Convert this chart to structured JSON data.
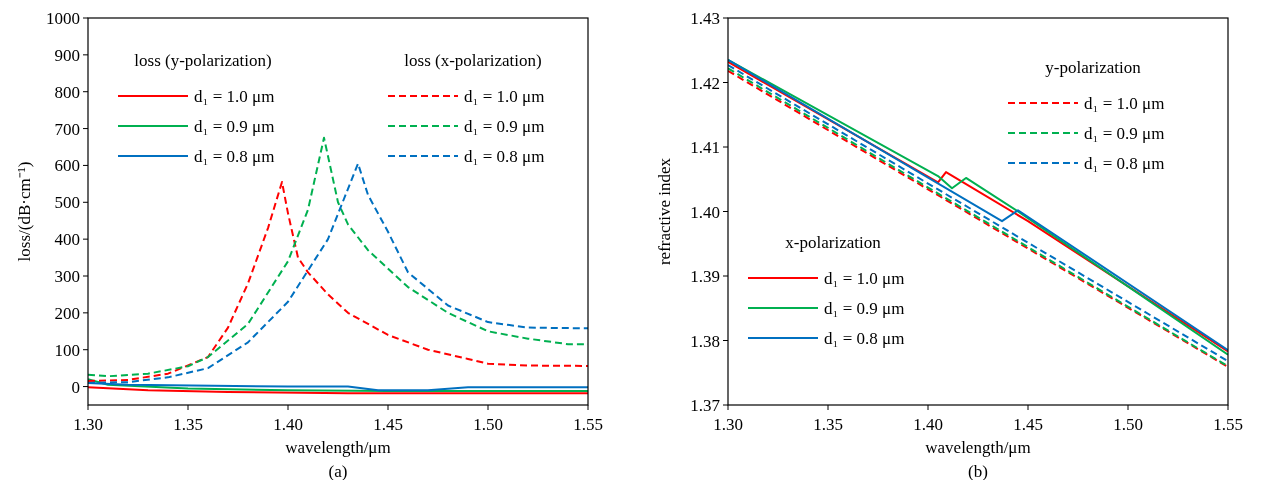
{
  "chart_data": [
    {
      "type": "line",
      "xlabel": "wavelength/μm",
      "ylabel": "loss/(dB·cm⁻¹)",
      "xlim": [
        1.3,
        1.55
      ],
      "ylim": [
        -50,
        1000
      ],
      "xticks": [
        {
          "value": 1.3,
          "label": "1.30"
        },
        {
          "value": 1.35,
          "label": "1.35"
        },
        {
          "value": 1.4,
          "label": "1.40"
        },
        {
          "value": 1.45,
          "label": "1.45"
        },
        {
          "value": 1.5,
          "label": "1.50"
        },
        {
          "value": 1.55,
          "label": "1.55"
        }
      ],
      "yticks": [
        0,
        100,
        200,
        300,
        400,
        500,
        600,
        700,
        800,
        900,
        1000
      ],
      "legend": "top",
      "grid": false,
      "annotations": [
        "(a)",
        "loss (y-polarization)",
        "loss (x-polarization)"
      ],
      "series": [
        {
          "name": "d₁ = 1.0 μm",
          "color": "#ff0000",
          "line_style": "solid",
          "x": [
            1.3,
            1.33,
            1.37,
            1.43,
            1.55
          ],
          "values": [
            -2,
            -10,
            -15,
            -18,
            -18
          ]
        },
        {
          "name": "d₁ = 0.9 μm",
          "color": "#00b050",
          "line_style": "solid",
          "x": [
            1.3,
            1.31,
            1.35,
            1.4,
            1.45,
            1.55
          ],
          "values": [
            20,
            5,
            -5,
            -10,
            -12,
            -12
          ]
        },
        {
          "name": "d₁ = 0.8 μm",
          "color": "#0070c0",
          "line_style": "solid",
          "x": [
            1.3,
            1.32,
            1.4,
            1.43,
            1.445,
            1.47,
            1.49,
            1.55
          ],
          "values": [
            10,
            5,
            0,
            0,
            -10,
            -10,
            -2,
            -2
          ]
        },
        {
          "name": "d₁ = 1.0 μm",
          "color": "#ff0000",
          "line_style": "dashed",
          "x": [
            1.3,
            1.32,
            1.34,
            1.36,
            1.37,
            1.38,
            1.39,
            1.397,
            1.4,
            1.405,
            1.41,
            1.42,
            1.43,
            1.45,
            1.47,
            1.49,
            1.5,
            1.52,
            1.55
          ],
          "values": [
            15,
            18,
            35,
            80,
            160,
            280,
            430,
            555,
            470,
            350,
            310,
            250,
            200,
            140,
            100,
            75,
            62,
            57,
            56
          ]
        },
        {
          "name": "d₁ = 0.9 μm",
          "color": "#00b050",
          "line_style": "dashed",
          "x": [
            1.3,
            1.31,
            1.33,
            1.35,
            1.36,
            1.38,
            1.4,
            1.41,
            1.418,
            1.425,
            1.43,
            1.44,
            1.46,
            1.48,
            1.5,
            1.52,
            1.54,
            1.55
          ],
          "values": [
            32,
            28,
            35,
            55,
            80,
            170,
            340,
            480,
            675,
            500,
            440,
            370,
            270,
            200,
            150,
            130,
            115,
            115
          ]
        },
        {
          "name": "d₁ = 0.8 μm",
          "color": "#0070c0",
          "line_style": "dashed",
          "x": [
            1.3,
            1.32,
            1.34,
            1.36,
            1.38,
            1.4,
            1.42,
            1.435,
            1.44,
            1.45,
            1.46,
            1.48,
            1.5,
            1.52,
            1.55
          ],
          "values": [
            10,
            12,
            25,
            50,
            120,
            230,
            400,
            605,
            520,
            420,
            310,
            220,
            175,
            160,
            158
          ]
        }
      ]
    },
    {
      "type": "line",
      "xlabel": "wavelength/μm",
      "ylabel": "refractive index",
      "xlim": [
        1.3,
        1.55
      ],
      "ylim": [
        1.37,
        1.43
      ],
      "xticks": [
        {
          "value": 1.3,
          "label": "1.30"
        },
        {
          "value": 1.35,
          "label": "1.35"
        },
        {
          "value": 1.4,
          "label": "1.40"
        },
        {
          "value": 1.45,
          "label": "1.45"
        },
        {
          "value": 1.5,
          "label": "1.50"
        },
        {
          "value": 1.55,
          "label": "1.55"
        }
      ],
      "yticks": [
        {
          "value": 1.37,
          "label": "1.37"
        },
        {
          "value": 1.38,
          "label": "1.38"
        },
        {
          "value": 1.39,
          "label": "1.39"
        },
        {
          "value": 1.4,
          "label": "1.40"
        },
        {
          "value": 1.41,
          "label": "1.41"
        },
        {
          "value": 1.42,
          "label": "1.42"
        },
        {
          "value": 1.43,
          "label": "1.43"
        }
      ],
      "legend": "right",
      "grid": false,
      "annotations": [
        "(b)",
        "x-polarization",
        "y-polarization"
      ],
      "series": [
        {
          "name": "d₁ = 1.0 μm",
          "color": "#ff0000",
          "line_style": "solid",
          "x": [
            1.3,
            1.405,
            1.409,
            1.45,
            1.55
          ],
          "values": [
            1.4232,
            1.4045,
            1.4061,
            1.3985,
            1.3783
          ]
        },
        {
          "name": "d₁ = 0.9 μm",
          "color": "#00b050",
          "line_style": "solid",
          "x": [
            1.3,
            1.405,
            1.412,
            1.419,
            1.445,
            1.55
          ],
          "values": [
            1.4235,
            1.4055,
            1.4036,
            1.4052,
            1.4,
            1.3778
          ]
        },
        {
          "name": "d₁ = 0.8 μm",
          "color": "#0070c0",
          "line_style": "solid",
          "x": [
            1.3,
            1.437,
            1.445,
            1.55
          ],
          "values": [
            1.4235,
            1.3985,
            1.4002,
            1.3785
          ]
        },
        {
          "name": "d₁ = 1.0 μm",
          "color": "#ff0000",
          "line_style": "dashed",
          "x": [
            1.3,
            1.55
          ],
          "values": [
            1.4218,
            1.3759
          ]
        },
        {
          "name": "d₁ = 0.9 μm",
          "color": "#00b050",
          "line_style": "dashed",
          "x": [
            1.3,
            1.55
          ],
          "values": [
            1.4222,
            1.376
          ]
        },
        {
          "name": "d₁ = 0.8 μm",
          "color": "#0070c0",
          "line_style": "dashed",
          "x": [
            1.3,
            1.55
          ],
          "values": [
            1.4227,
            1.3768
          ]
        }
      ]
    }
  ]
}
